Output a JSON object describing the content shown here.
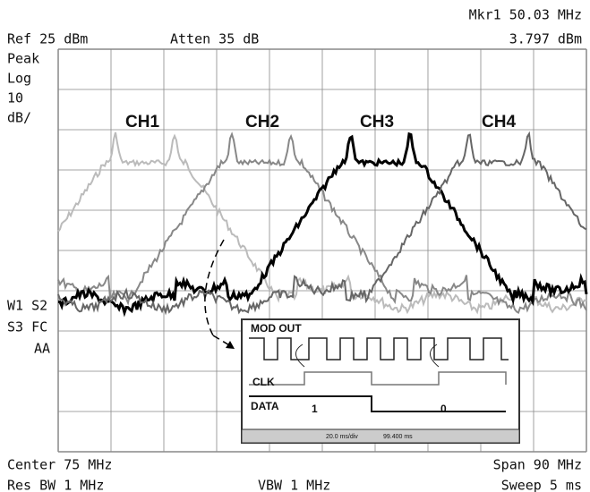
{
  "header": {
    "marker": "Mkr1  50.03 MHz",
    "ref": "Ref 25 dBm",
    "atten": "Atten 35 dB",
    "marker_level": "3.797 dBm"
  },
  "left_labels": [
    "Peak",
    "Log",
    "10",
    "dB/"
  ],
  "side_labels": [
    "W1 S2",
    "S3 FC",
    "AA"
  ],
  "channels": [
    "CH1",
    "CH2",
    "CH3",
    "CH4"
  ],
  "footer": {
    "center": "Center 75 MHz",
    "span": "Span 90 MHz",
    "res_bw": "Res BW 1 MHz",
    "vbw": "VBW 1 MHz",
    "sweep": "Sweep 5 ms"
  },
  "inset": {
    "mod_out": "MOD OUT",
    "clk": "CLK",
    "data": "DATA",
    "bit_one": "1",
    "bit_zero": "0",
    "timebase": "20.0 ms/div",
    "position": "99.400 ms"
  }
}
